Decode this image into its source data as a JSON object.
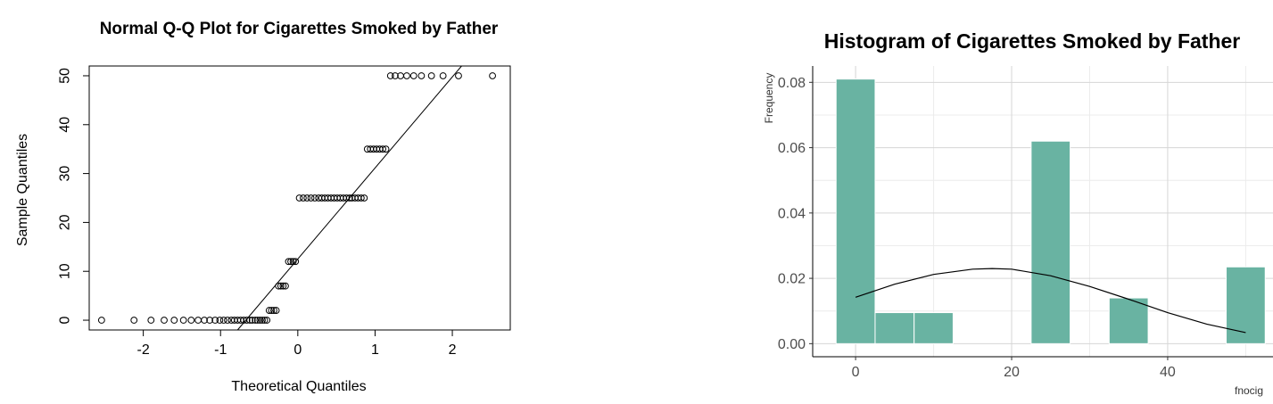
{
  "chart_data": [
    {
      "type": "scatter",
      "title": "Normal Q-Q Plot for Cigarettes Smoked by Father",
      "xlabel": "Theoretical Quantiles",
      "ylabel": "Sample Quantiles",
      "xlim": [
        -2.7,
        2.75
      ],
      "ylim": [
        -2,
        52
      ],
      "xticks": [
        -2,
        -1,
        0,
        1,
        2
      ],
      "yticks": [
        0,
        10,
        20,
        30,
        40,
        50
      ],
      "reference_line": {
        "x": [
          -0.78,
          2.12
        ],
        "y": [
          -2,
          52
        ]
      },
      "points": [
        [
          -2.54,
          0
        ],
        [
          -2.12,
          0
        ],
        [
          -1.9,
          0
        ],
        [
          -1.73,
          0
        ],
        [
          -1.6,
          0
        ],
        [
          -1.48,
          0
        ],
        [
          -1.38,
          0
        ],
        [
          -1.29,
          0
        ],
        [
          -1.21,
          0
        ],
        [
          -1.14,
          0
        ],
        [
          -1.07,
          0
        ],
        [
          -1.01,
          0
        ],
        [
          -0.96,
          0
        ],
        [
          -0.91,
          0
        ],
        [
          -0.86,
          0
        ],
        [
          -0.82,
          0
        ],
        [
          -0.78,
          0
        ],
        [
          -0.74,
          0
        ],
        [
          -0.7,
          0
        ],
        [
          -0.66,
          0
        ],
        [
          -0.62,
          0
        ],
        [
          -0.59,
          0
        ],
        [
          -0.55,
          0
        ],
        [
          -0.52,
          0
        ],
        [
          -0.49,
          0
        ],
        [
          -0.46,
          0
        ],
        [
          -0.43,
          0
        ],
        [
          -0.4,
          0
        ],
        [
          -0.37,
          2
        ],
        [
          -0.34,
          2
        ],
        [
          -0.31,
          2
        ],
        [
          -0.28,
          2
        ],
        [
          -0.25,
          7
        ],
        [
          -0.22,
          7
        ],
        [
          -0.19,
          7
        ],
        [
          -0.16,
          7
        ],
        [
          -0.12,
          12
        ],
        [
          -0.09,
          12
        ],
        [
          -0.06,
          12
        ],
        [
          -0.03,
          12
        ],
        [
          0.02,
          25
        ],
        [
          0.07,
          25
        ],
        [
          0.12,
          25
        ],
        [
          0.17,
          25
        ],
        [
          0.22,
          25
        ],
        [
          0.27,
          25
        ],
        [
          0.31,
          25
        ],
        [
          0.35,
          25
        ],
        [
          0.39,
          25
        ],
        [
          0.43,
          25
        ],
        [
          0.47,
          25
        ],
        [
          0.51,
          25
        ],
        [
          0.55,
          25
        ],
        [
          0.59,
          25
        ],
        [
          0.63,
          25
        ],
        [
          0.67,
          25
        ],
        [
          0.7,
          25
        ],
        [
          0.74,
          25
        ],
        [
          0.78,
          25
        ],
        [
          0.82,
          25
        ],
        [
          0.86,
          25
        ],
        [
          0.9,
          35
        ],
        [
          0.94,
          35
        ],
        [
          0.98,
          35
        ],
        [
          1.02,
          35
        ],
        [
          1.06,
          35
        ],
        [
          1.1,
          35
        ],
        [
          1.14,
          35
        ],
        [
          1.2,
          50
        ],
        [
          1.26,
          50
        ],
        [
          1.33,
          50
        ],
        [
          1.41,
          50
        ],
        [
          1.5,
          50
        ],
        [
          1.6,
          50
        ],
        [
          1.73,
          50
        ],
        [
          1.88,
          50
        ],
        [
          2.08,
          50
        ],
        [
          2.52,
          50
        ]
      ]
    },
    {
      "type": "bar",
      "title": "Histogram of Cigarettes Smoked by Father",
      "xlabel": "fnocig",
      "ylabel": "Frequency",
      "xlim": [
        -5.5,
        53.5
      ],
      "ylim": [
        -0.004,
        0.085
      ],
      "xticks": [
        0,
        20,
        40
      ],
      "yticks": [
        "0.00",
        "0.02",
        "0.04",
        "0.06",
        "0.08"
      ],
      "grid": true,
      "bar_color": "#69b3a2",
      "bins": [
        {
          "x0": -2.5,
          "x1": 2.5,
          "value": 0.081
        },
        {
          "x0": 2.5,
          "x1": 7.5,
          "value": 0.0095
        },
        {
          "x0": 7.5,
          "x1": 12.5,
          "value": 0.0095
        },
        {
          "x0": 22.5,
          "x1": 27.5,
          "value": 0.062
        },
        {
          "x0": 32.5,
          "x1": 37.5,
          "value": 0.014
        },
        {
          "x0": 47.5,
          "x1": 52.5,
          "value": 0.0235
        }
      ],
      "density_curve": {
        "x": [
          0,
          5,
          10,
          15,
          17.5,
          20,
          25,
          30,
          35,
          40,
          45,
          50
        ],
        "y": [
          0.0142,
          0.0182,
          0.0212,
          0.0228,
          0.023,
          0.0228,
          0.0208,
          0.0175,
          0.0136,
          0.0095,
          0.006,
          0.0034
        ]
      }
    }
  ]
}
